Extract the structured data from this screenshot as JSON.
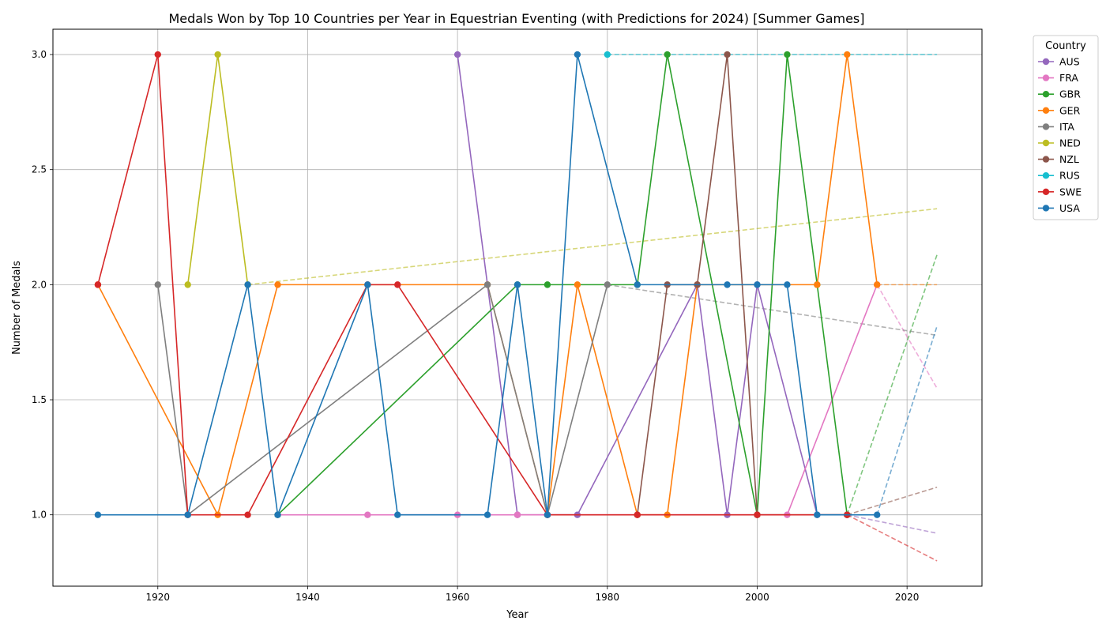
{
  "chart_data": {
    "type": "line",
    "title": "Medals Won by Top 10 Countries per Year in Equestrian Eventing (with Predictions for 2024) [Summer Games]",
    "xlabel": "Year",
    "ylabel": "Number of Medals",
    "xlim": [
      1906,
      2030
    ],
    "ylim": [
      0.69,
      3.11
    ],
    "xticks": [
      1920,
      1940,
      1960,
      1980,
      2000,
      2020
    ],
    "yticks": [
      1.0,
      1.5,
      2.0,
      2.5,
      3.0
    ],
    "xtick_labels": [
      "1920",
      "1940",
      "1960",
      "1980",
      "2000",
      "2020"
    ],
    "ytick_labels": [
      "1.0",
      "1.5",
      "2.0",
      "2.5",
      "3.0"
    ],
    "grid": true,
    "legend": {
      "title": "Country",
      "placement": "outside-top-right"
    },
    "series": [
      {
        "name": "AUS",
        "color": "#9467bd",
        "x": [
          1960,
          1968,
          1972,
          1976,
          1992,
          1996,
          2000,
          2008,
          2012
        ],
        "y": [
          3,
          1,
          1,
          1,
          2,
          1,
          2,
          1,
          1
        ],
        "prediction": {
          "x": [
            2012,
            2024
          ],
          "y": [
            1.0,
            0.92
          ]
        }
      },
      {
        "name": "FRA",
        "color": "#e377c2",
        "x": [
          1936,
          1948,
          1960,
          1968,
          1972,
          2004,
          2016
        ],
        "y": [
          1,
          1,
          1,
          1,
          1,
          1,
          2
        ],
        "prediction": {
          "x": [
            2016,
            2024
          ],
          "y": [
            2.0,
            1.55
          ]
        }
      },
      {
        "name": "GBR",
        "color": "#2ca02c",
        "x": [
          1936,
          1968,
          1972,
          1984,
          1988,
          2000,
          2004,
          2008,
          2012
        ],
        "y": [
          1,
          2,
          2,
          2,
          3,
          1,
          3,
          2,
          1
        ],
        "prediction": {
          "x": [
            2012,
            2024
          ],
          "y": [
            1.0,
            2.13
          ]
        }
      },
      {
        "name": "GER",
        "color": "#ff7f0e",
        "x": [
          1912,
          1928,
          1936,
          1964,
          1972,
          1976,
          1984,
          1988,
          1992,
          2008,
          2012,
          2016
        ],
        "y": [
          2,
          1,
          2,
          2,
          1,
          2,
          1,
          1,
          2,
          2,
          3,
          2
        ],
        "prediction": {
          "x": [
            2016,
            2024
          ],
          "y": [
            2.0,
            2.0
          ]
        }
      },
      {
        "name": "ITA",
        "color": "#7f7f7f",
        "x": [
          1920,
          1924,
          1964,
          1972,
          1980
        ],
        "y": [
          2,
          1,
          2,
          1,
          2
        ],
        "prediction": {
          "x": [
            1980,
            2024
          ],
          "y": [
            2.0,
            1.78
          ]
        }
      },
      {
        "name": "NED",
        "color": "#bcbd22",
        "x": [
          1924,
          1928,
          1932
        ],
        "y": [
          2,
          3,
          2
        ],
        "prediction": {
          "x": [
            1932,
            2024
          ],
          "y": [
            2.0,
            2.33
          ]
        }
      },
      {
        "name": "NZL",
        "color": "#8c564b",
        "x": [
          1984,
          1988,
          1992,
          1996,
          2000,
          2012
        ],
        "y": [
          1,
          2,
          2,
          3,
          1,
          1
        ],
        "prediction": {
          "x": [
            2012,
            2024
          ],
          "y": [
            1.0,
            1.12
          ]
        }
      },
      {
        "name": "RUS",
        "color": "#17becf",
        "x": [
          1980
        ],
        "y": [
          3
        ],
        "prediction": {
          "x": [
            1980,
            2024
          ],
          "y": [
            3.0,
            3.0
          ]
        }
      },
      {
        "name": "SWE",
        "color": "#d62728",
        "x": [
          1912,
          1920,
          1924,
          1932,
          1948,
          1952,
          1972,
          1984,
          2000,
          2012
        ],
        "y": [
          2,
          3,
          1,
          1,
          2,
          2,
          1,
          1,
          1,
          1
        ],
        "prediction": {
          "x": [
            2012,
            2024
          ],
          "y": [
            1.0,
            0.8
          ]
        }
      },
      {
        "name": "USA",
        "color": "#1f77b4",
        "x": [
          1912,
          1924,
          1932,
          1936,
          1948,
          1952,
          1964,
          1968,
          1972,
          1976,
          1984,
          1996,
          2000,
          2004,
          2008,
          2016
        ],
        "y": [
          1,
          1,
          2,
          1,
          2,
          1,
          1,
          2,
          1,
          3,
          2,
          2,
          2,
          2,
          1,
          1
        ],
        "prediction": {
          "x": [
            2016,
            2024
          ],
          "y": [
            1.0,
            1.82
          ]
        }
      }
    ]
  }
}
